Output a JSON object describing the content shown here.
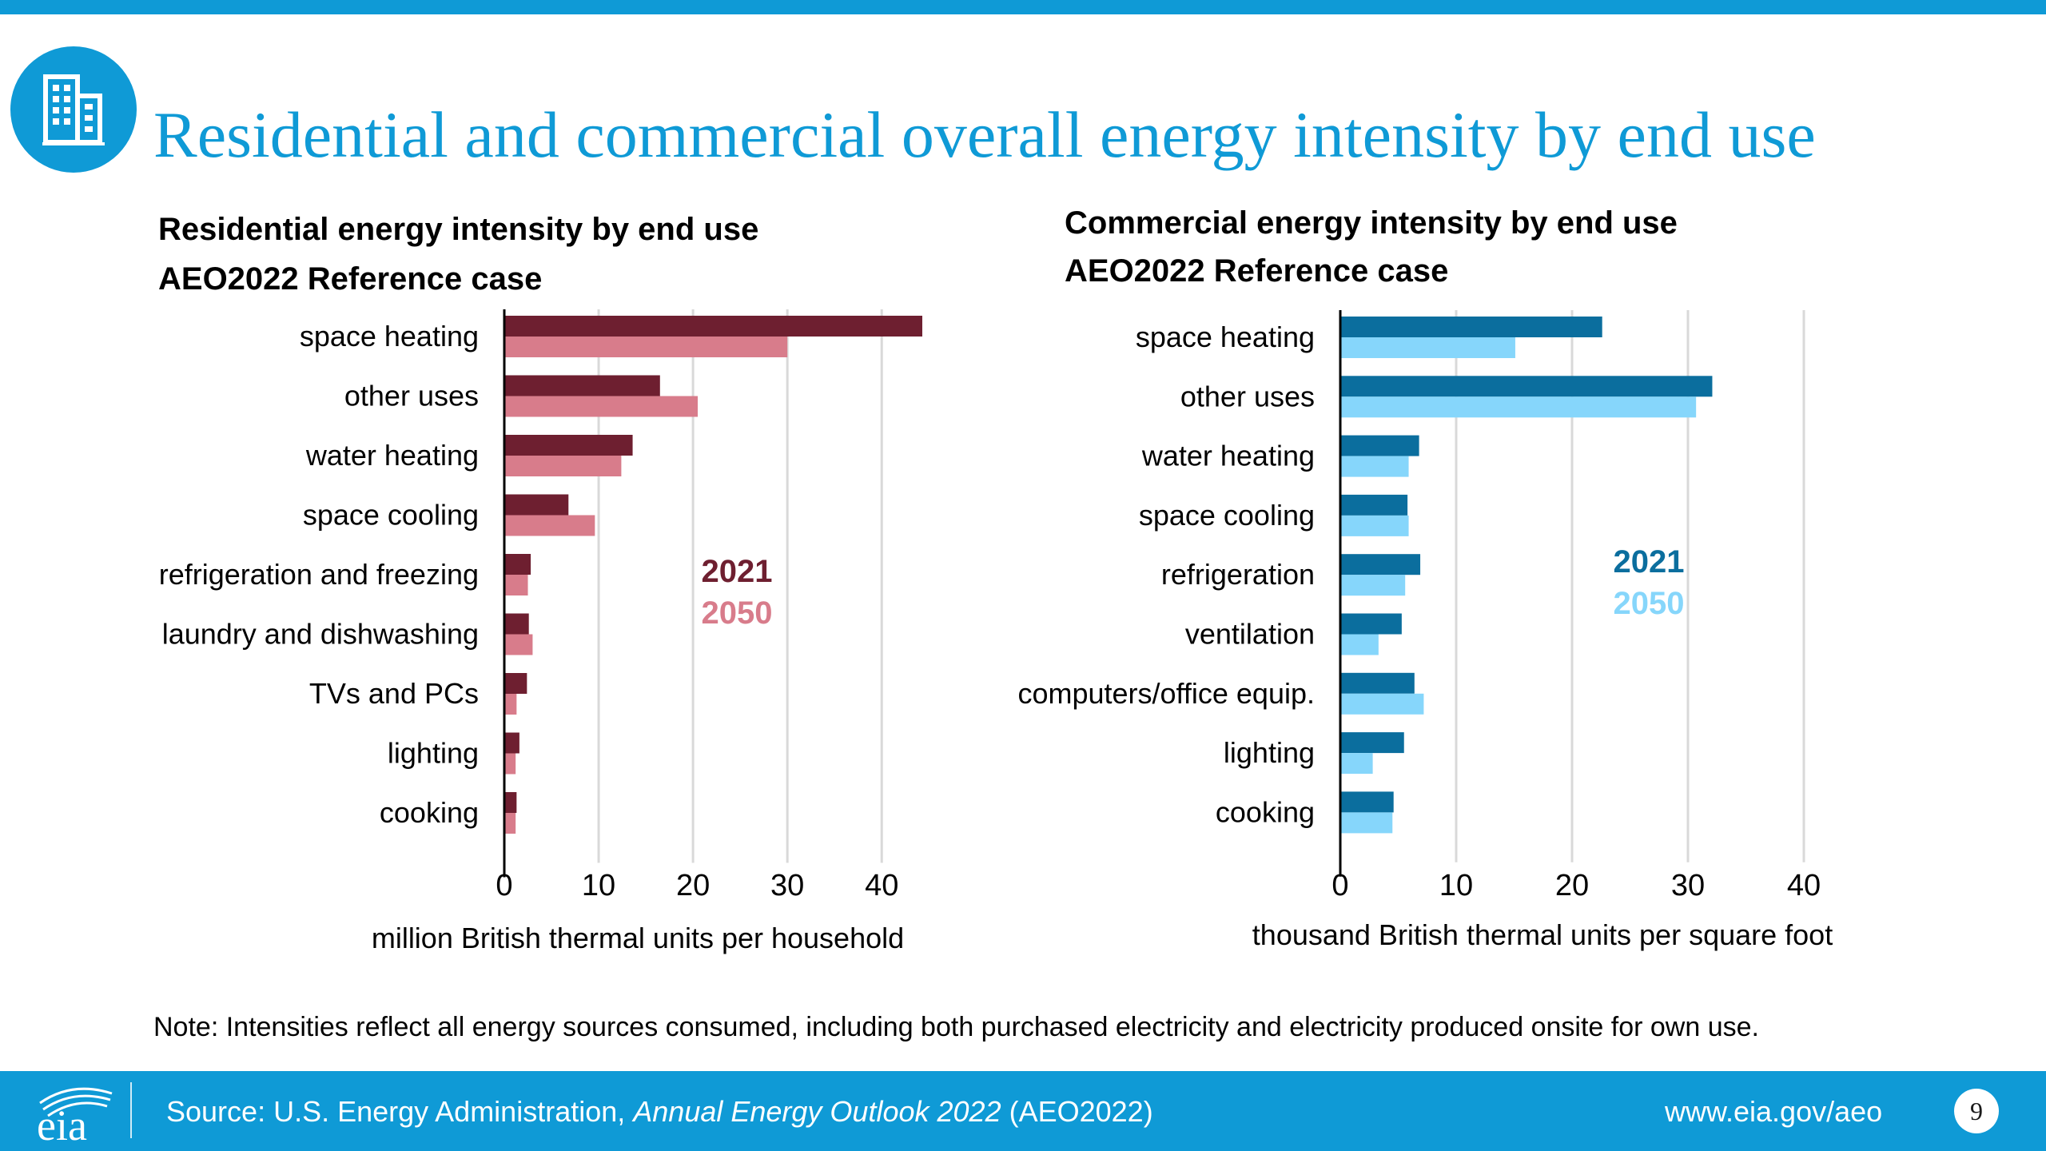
{
  "slide": {
    "title": "Residential and commercial overall energy intensity by end use",
    "note": "Note: Intensities reflect all energy sources consumed, including both purchased electricity and electricity produced onsite for own use.",
    "page_number": "9"
  },
  "footer": {
    "source_prefix": "Source: U.S. Energy Administration, ",
    "source_italic": "Annual Energy Outlook 2022",
    "source_suffix": " (AEO2022)",
    "url": "www.eia.gov/aeo",
    "logo_text": "eia"
  },
  "icons": {
    "badge": "building-icon",
    "logo": "eia-logo-icon"
  },
  "colors": {
    "brand": "#0f9ad6",
    "residential_2021": "#6e1f30",
    "residential_2050": "#d87c8b",
    "commercial_2021": "#0b6e9e",
    "commercial_2050": "#86d6fb",
    "grid": "#d9d9d9"
  },
  "chart_data": [
    {
      "type": "bar",
      "orientation": "horizontal",
      "title": [
        "Residential energy intensity by end use",
        "AEO2022 Reference case"
      ],
      "categories": [
        "space heating",
        "other uses",
        "water heating",
        "space cooling",
        "refrigeration and freezing",
        "laundry and dishwashing",
        "TVs and PCs",
        "lighting",
        "cooking"
      ],
      "series": [
        {
          "name": "2021",
          "values": [
            44.3,
            16.5,
            13.6,
            6.8,
            2.8,
            2.6,
            2.4,
            1.6,
            1.3
          ]
        },
        {
          "name": "2050",
          "values": [
            30.0,
            20.5,
            12.4,
            9.6,
            2.5,
            3.0,
            1.3,
            1.2,
            1.2
          ]
        }
      ],
      "xlabel": "million British thermal units per household",
      "xlim": [
        0,
        44.3
      ],
      "xticks": [
        0,
        10,
        20,
        30,
        40
      ],
      "grid": true,
      "legend": "inside-right"
    },
    {
      "type": "bar",
      "orientation": "horizontal",
      "title": [
        "Commercial energy intensity by end use",
        "AEO2022 Reference case"
      ],
      "categories": [
        "space heating",
        "other uses",
        "water heating",
        "space cooling",
        "refrigeration",
        "ventilation",
        "computers/office equip.",
        "lighting",
        "cooking"
      ],
      "series": [
        {
          "name": "2021",
          "values": [
            22.6,
            32.1,
            6.8,
            5.8,
            6.9,
            5.3,
            6.4,
            5.5,
            4.6
          ]
        },
        {
          "name": "2050",
          "values": [
            15.1,
            30.7,
            5.9,
            5.9,
            5.6,
            3.3,
            7.2,
            2.8,
            4.5
          ]
        }
      ],
      "xlabel": "thousand British thermal units per square foot",
      "xlim": [
        0,
        40
      ],
      "xticks": [
        0,
        10,
        20,
        30,
        40
      ],
      "grid": true,
      "legend": "inside-right"
    }
  ]
}
